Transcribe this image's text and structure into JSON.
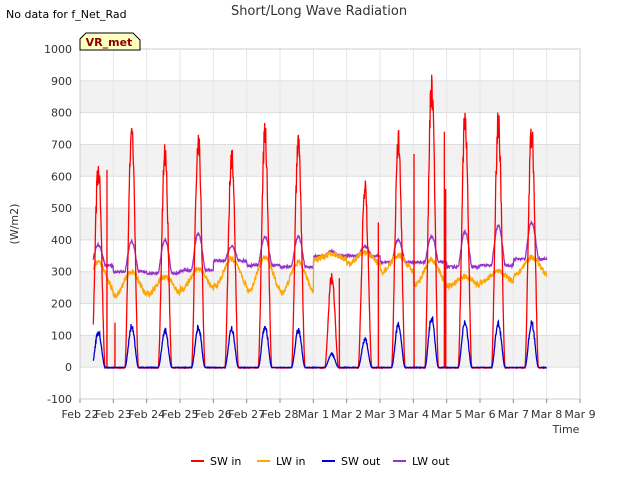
{
  "header": {
    "nodata_text": "No data for f_Net_Rad"
  },
  "badge": {
    "label": "VR_met",
    "bg_color": "#ffffc0",
    "text_color": "#8b0000"
  },
  "chart_data": {
    "type": "line",
    "title": "Short/Long Wave Radiation",
    "xlabel": "Time",
    "ylabel": "(W/m2)",
    "ylim": [
      -100,
      1000
    ],
    "yticks": [
      -100,
      0,
      100,
      200,
      300,
      400,
      500,
      600,
      700,
      800,
      900,
      1000
    ],
    "xlim": [
      0,
      15
    ],
    "xtick_positions": [
      0,
      1,
      2,
      3,
      4,
      5,
      6,
      7,
      8,
      9,
      10,
      11,
      12,
      13,
      14,
      15
    ],
    "xtick_labels": [
      "Feb 22",
      "Feb 23",
      "Feb 24",
      "Feb 25",
      "Feb 26",
      "Feb 27",
      "Feb 28",
      "Mar 1",
      "Mar 2",
      "Mar 3",
      "Mar 4",
      "Mar 5",
      "Mar 6",
      "Mar 7",
      "Mar 8",
      "Mar 9"
    ],
    "grid": true,
    "legend_position": "bottom",
    "day_start": 0.35,
    "day_end": 0.75,
    "series": [
      {
        "name": "SW in",
        "color": "#ff0000",
        "daily_peak": [
          660,
          770,
          710,
          755,
          705,
          775,
          740,
          300,
          590,
          750,
          935,
          820,
          820,
          785
        ],
        "spikes": [
          [
            0.81,
            620
          ],
          [
            1.05,
            140
          ],
          [
            7.78,
            280
          ],
          [
            8.95,
            455
          ],
          [
            10.02,
            670
          ],
          [
            10.93,
            740
          ],
          [
            10.97,
            560
          ]
        ]
      },
      {
        "name": "LW in",
        "color": "#ffa500",
        "daily_min": [
          240,
          225,
          230,
          245,
          255,
          240,
          235,
          340,
          325,
          300,
          260,
          255,
          270,
          290
        ],
        "daily_max": [
          330,
          300,
          285,
          310,
          340,
          345,
          330,
          355,
          360,
          350,
          335,
          285,
          300,
          345
        ]
      },
      {
        "name": "SW out",
        "color": "#0000cd",
        "daily_peak": [
          120,
          140,
          125,
          135,
          130,
          140,
          125,
          45,
          95,
          145,
          170,
          155,
          150,
          150
        ]
      },
      {
        "name": "LW out",
        "color": "#9932cc",
        "daily_base": [
          320,
          300,
          295,
          305,
          335,
          320,
          315,
          350,
          350,
          330,
          330,
          315,
          320,
          340
        ],
        "daily_peak": [
          385,
          395,
          400,
          420,
          380,
          410,
          410,
          365,
          380,
          400,
          410,
          425,
          445,
          455
        ]
      }
    ]
  }
}
